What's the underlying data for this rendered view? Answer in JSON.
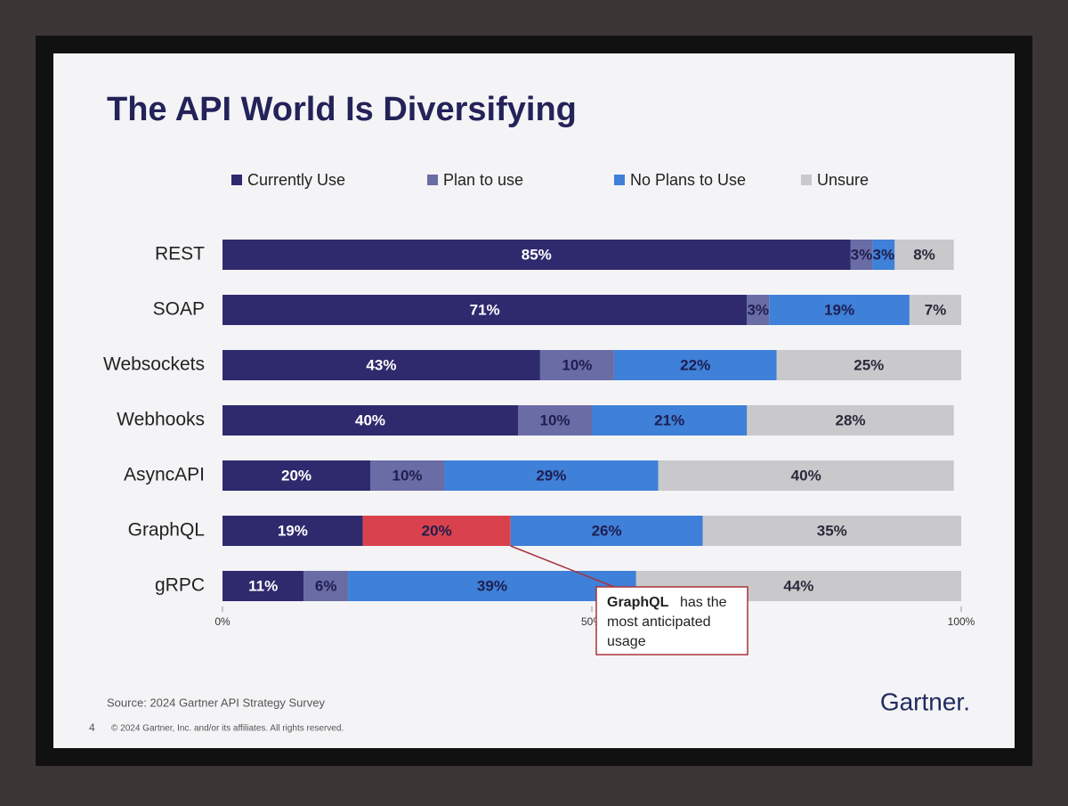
{
  "chart_data": {
    "type": "stacked_barh",
    "title": "The API World Is Diversifying",
    "categories": [
      "REST",
      "SOAP",
      "Websockets",
      "Webhooks",
      "AsyncAPI",
      "GraphQL",
      "gRPC"
    ],
    "series": [
      {
        "name": "Currently Use",
        "color": "#2f2a6e",
        "values": [
          85,
          71,
          43,
          40,
          20,
          19,
          11
        ],
        "value_labels": [
          "85%",
          "71%",
          "43%",
          "40%",
          "20%",
          "19%",
          "11%"
        ]
      },
      {
        "name": "Plan to use",
        "color": "#6a6ca6",
        "colors": [
          "#6a6ca6",
          "#6a6ca6",
          "#6a6ca6",
          "#6a6ca6",
          "#6a6ca6",
          "#d9424c",
          "#6a6ca6"
        ],
        "values": [
          3,
          3,
          10,
          10,
          10,
          20,
          6
        ],
        "value_labels": [
          "3%",
          "3%",
          "10%",
          "10%",
          "10%",
          "20%",
          "6%"
        ]
      },
      {
        "name": "No Plans to Use",
        "color": "#3f80d8",
        "values": [
          3,
          19,
          22,
          21,
          29,
          26,
          39
        ],
        "value_labels": [
          "3%",
          "19%",
          "22%",
          "21%",
          "29%",
          "26%",
          "39%"
        ]
      },
      {
        "name": "Unsure",
        "color": "#c9c9cc",
        "values": [
          8,
          7,
          25,
          28,
          40,
          35,
          44
        ],
        "value_labels": [
          "8%",
          "7%",
          "25%",
          "28%",
          "40%",
          "35%",
          "44%"
        ]
      }
    ],
    "xlim": [
      0,
      100
    ],
    "xticks": [
      {
        "value": 0,
        "label": "0%"
      },
      {
        "value": 50,
        "label": "50%"
      },
      {
        "value": 100,
        "label": "100%"
      }
    ],
    "annotation": {
      "bold": "GraphQL",
      "text": "has the most anticipated usage"
    },
    "source": "Source: 2024 Gartner API Strategy Survey",
    "page_number": "4",
    "copyright": "© 2024 Gartner, Inc. and/or its affiliates. All rights reserved.",
    "logo": "Gartner."
  }
}
